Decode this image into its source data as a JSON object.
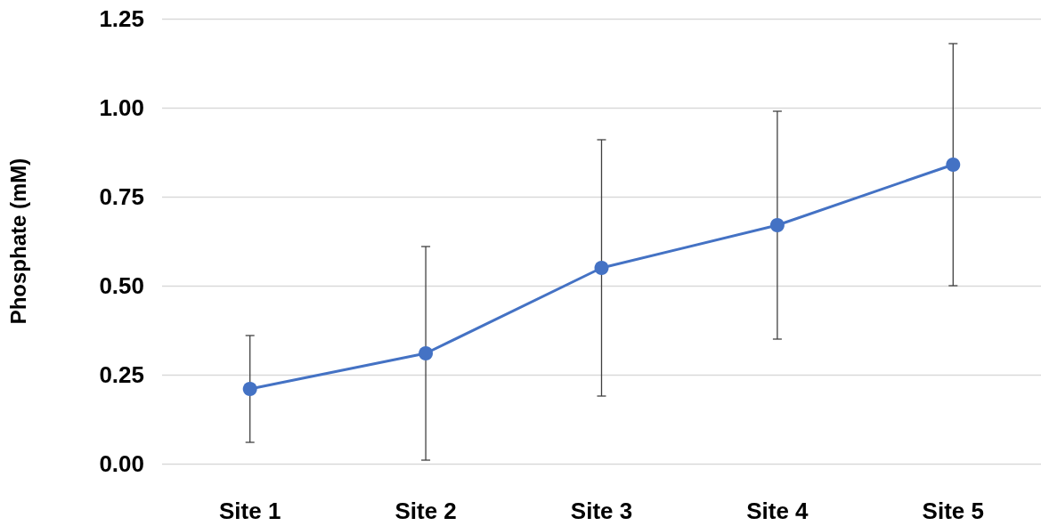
{
  "chart_data": {
    "type": "line",
    "ylabel": "Phosphate (mM)",
    "categories": [
      "Site 1",
      "Site 2",
      "Site 3",
      "Site 4",
      "Site 5"
    ],
    "series": [
      {
        "color": "#4472c4",
        "values": [
          0.21,
          0.31,
          0.55,
          0.67,
          0.84
        ],
        "errors": [
          0.15,
          0.3,
          0.36,
          0.32,
          0.34
        ]
      }
    ],
    "ylim": [
      0,
      1.25
    ],
    "yticks": [
      {
        "value": 0,
        "label": "0.00"
      },
      {
        "value": 0.25,
        "label": "0.25"
      },
      {
        "value": 0.5,
        "label": "0.50"
      },
      {
        "value": 0.75,
        "label": "0.75"
      },
      {
        "value": 1,
        "label": "1.00"
      },
      {
        "value": 1.25,
        "label": "1.25"
      }
    ],
    "grid": "y",
    "marker": "circle",
    "line_style": "solid"
  }
}
